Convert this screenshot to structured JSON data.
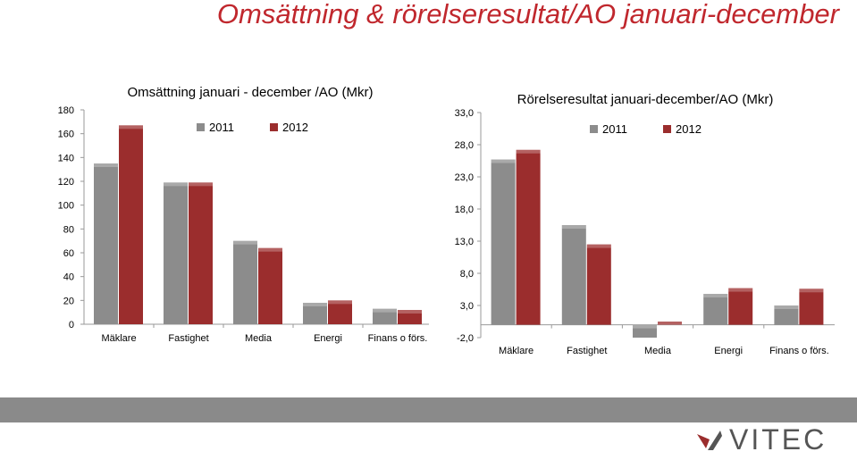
{
  "page": {
    "title": "Omsättning & rörelseresultat/AO januari-december",
    "logo_text": "VITEC"
  },
  "colors": {
    "title": "#c0272d",
    "series_2011": "#8c8c8c",
    "series_2012": "#9b2d2d",
    "band": "#8a8a8a"
  },
  "chart_data": [
    {
      "type": "bar",
      "title": "Omsättning januari - december /AO (Mkr)",
      "categories": [
        "Mäklare",
        "Fastighet",
        "Media",
        "Energi",
        "Finans o förs."
      ],
      "series": [
        {
          "name": "2011",
          "values": [
            135,
            119,
            70,
            18,
            13
          ]
        },
        {
          "name": "2012",
          "values": [
            167,
            119,
            64,
            20,
            12
          ]
        }
      ],
      "ylim": [
        0,
        180
      ],
      "yticks": [
        0,
        20,
        40,
        60,
        80,
        100,
        120,
        140,
        160,
        180
      ],
      "ytick_labels": [
        "0",
        "20",
        "40",
        "60",
        "80",
        "100",
        "120",
        "140",
        "160",
        "180"
      ],
      "legend": "top",
      "grid": false
    },
    {
      "type": "bar",
      "title": "Rörelseresultat januari-december/AO (Mkr)",
      "categories": [
        "Mäklare",
        "Fastighet",
        "Media",
        "Energi",
        "Finans o förs."
      ],
      "series": [
        {
          "name": "2011",
          "values": [
            25.7,
            15.5,
            -2.0,
            4.8,
            3.0
          ]
        },
        {
          "name": "2012",
          "values": [
            27.2,
            12.5,
            0.5,
            5.7,
            5.6
          ]
        }
      ],
      "ylim": [
        -2,
        33
      ],
      "yticks": [
        -2,
        3,
        8,
        13,
        18,
        23,
        28,
        33
      ],
      "ytick_labels": [
        "-2,0",
        "3,0",
        "8,0",
        "13,0",
        "18,0",
        "23,0",
        "28,0",
        "33,0"
      ],
      "legend": "top",
      "grid": false
    }
  ]
}
